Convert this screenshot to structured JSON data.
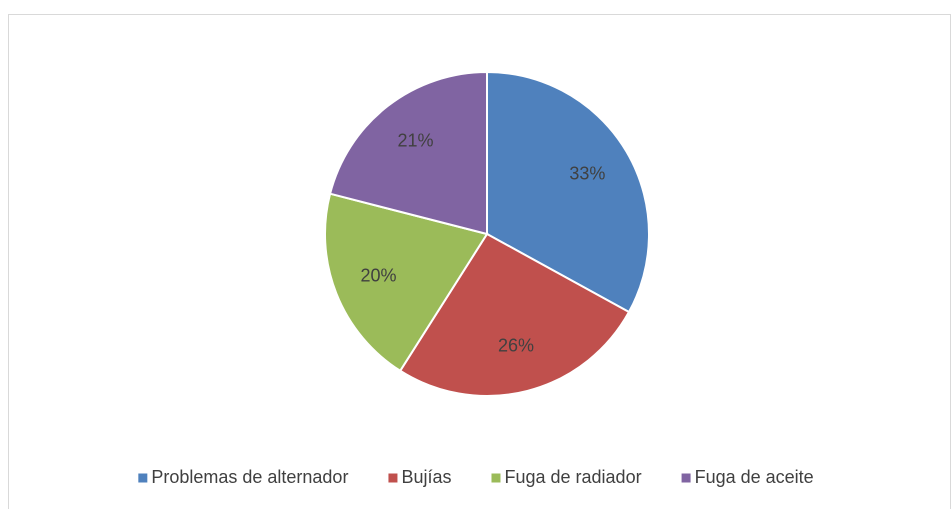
{
  "chart_data": {
    "type": "pie",
    "categories": [
      "Problemas de alternador",
      "Bujías",
      "Fuga de radiador",
      "Fuga de aceite"
    ],
    "values": [
      33,
      26,
      20,
      21
    ],
    "value_labels": [
      "33%",
      "26%",
      "20%",
      "21%"
    ],
    "colors": [
      "#4f81bd",
      "#c0504d",
      "#9bbb59",
      "#8064a2"
    ],
    "legend": "bottom"
  }
}
